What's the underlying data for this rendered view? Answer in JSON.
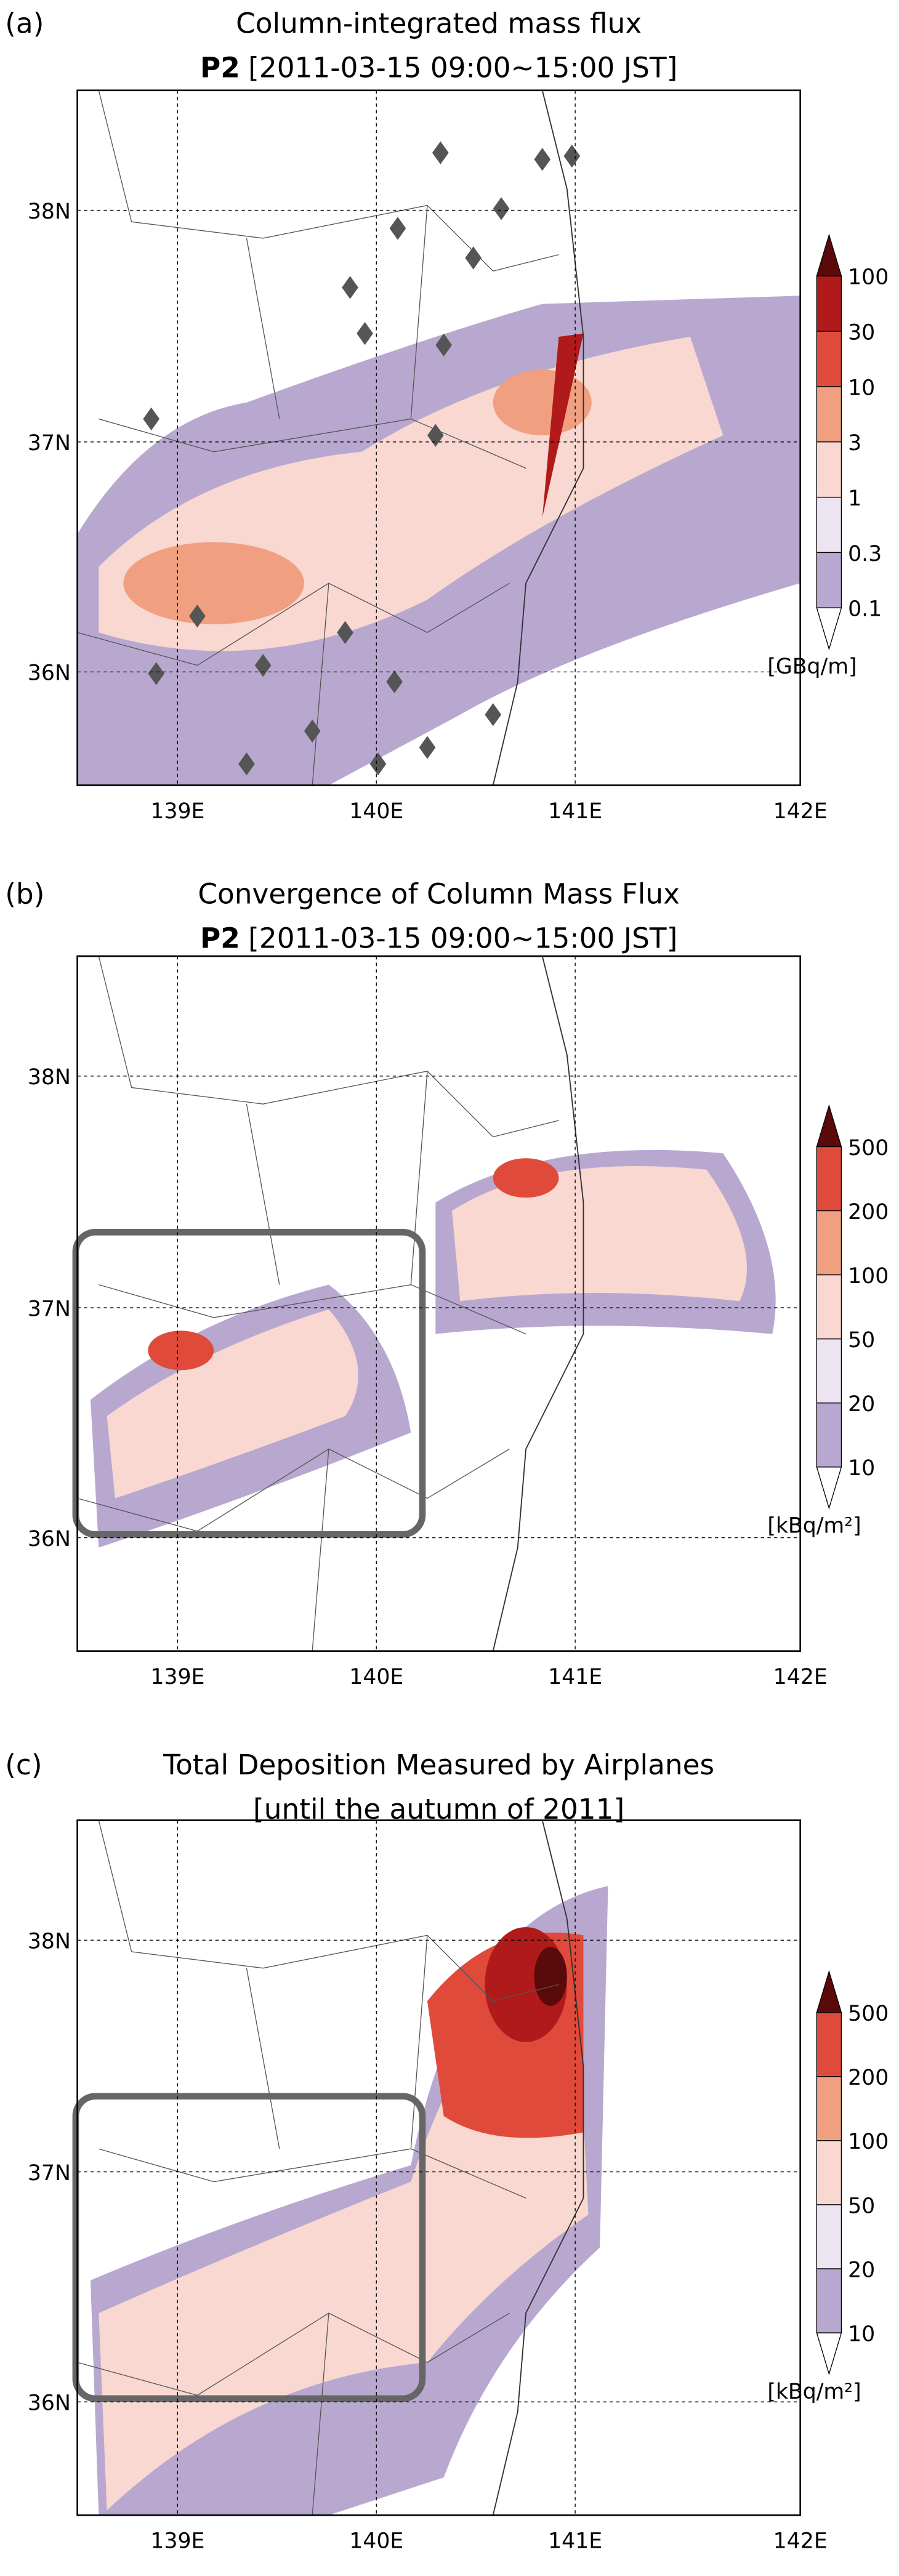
{
  "panels": [
    {
      "label": "(a)",
      "title": "Column-integrated mass flux",
      "subtitle_bold": "P2",
      "subtitle": "[2011-03-15 09:00~15:00 JST]",
      "xticks": [
        "139E",
        "140E",
        "141E",
        "142E"
      ],
      "yticks": [
        "38N",
        "37N",
        "36N"
      ],
      "colorbar": [
        "100",
        "30",
        "10",
        "3",
        "1",
        "0.3",
        "0.1"
      ],
      "unit": "[GBq/m]"
    },
    {
      "label": "(b)",
      "title": "Convergence of Column Mass Flux",
      "subtitle_bold": "P2",
      "subtitle": "[2011-03-15 09:00~15:00 JST]",
      "xticks": [
        "139E",
        "140E",
        "141E",
        "142E"
      ],
      "yticks": [
        "38N",
        "37N",
        "36N"
      ],
      "colorbar": [
        "500",
        "200",
        "100",
        "50",
        "20",
        "10"
      ],
      "unit": "[kBq/m²]"
    },
    {
      "label": "(c)",
      "title": "Total Deposition Measured by Airplanes",
      "subtitle": "[until the autumn of 2011]",
      "xticks": [
        "139E",
        "140E",
        "141E",
        "142E"
      ],
      "yticks": [
        "38N",
        "37N",
        "36N"
      ],
      "colorbar": [
        "500",
        "200",
        "100",
        "50",
        "20",
        "10"
      ],
      "unit": "[kBq/m²]"
    }
  ]
}
